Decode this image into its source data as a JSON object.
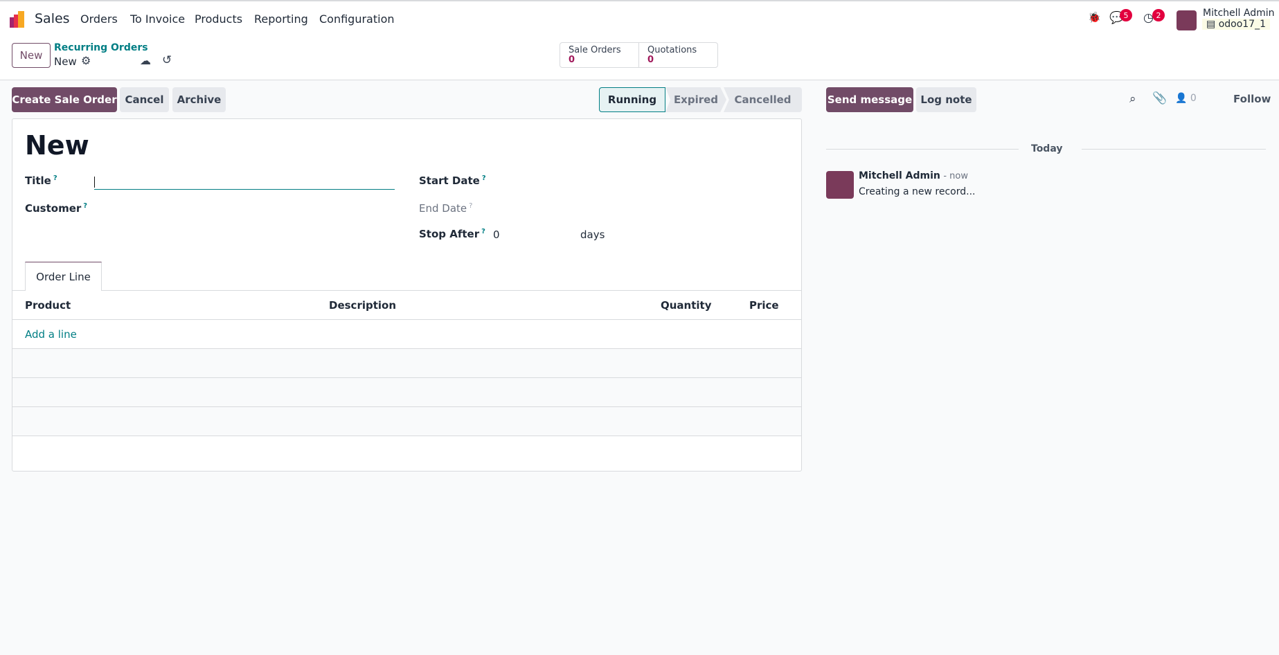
{
  "nav": {
    "app": "Sales",
    "items": [
      "Orders",
      "To Invoice",
      "Products",
      "Reporting",
      "Configuration"
    ],
    "messages_count": "5",
    "activities_count": "2",
    "user": "Mitchell Admin",
    "database": "odoo17_1"
  },
  "control": {
    "new_label": "New",
    "breadcrumb": "Recurring Orders",
    "record": "New",
    "stats": [
      {
        "label": "Sale Orders",
        "value": "0"
      },
      {
        "label": "Quotations",
        "value": "0"
      }
    ]
  },
  "actions": {
    "create": "Create Sale Order",
    "cancel": "Cancel",
    "archive": "Archive"
  },
  "statusbar": {
    "stages": [
      "Running",
      "Expired",
      "Cancelled"
    ],
    "active": "Running"
  },
  "form": {
    "title": "New",
    "fields": {
      "title": "Title",
      "customer": "Customer",
      "start_date": "Start Date",
      "end_date": "End Date",
      "stop_after": "Stop After",
      "stop_after_value": "0",
      "stop_after_unit": "days"
    },
    "help": "?",
    "tab": "Order Line",
    "columns": [
      "Product",
      "Description",
      "Quantity",
      "Price"
    ],
    "add_line": "Add a line"
  },
  "chatter": {
    "send": "Send message",
    "log": "Log note",
    "followers": "0",
    "follow": "Follow",
    "today": "Today",
    "author": "Mitchell Admin",
    "time": "- now",
    "body": "Creating a new record..."
  },
  "colors": {
    "primary": "#714b67",
    "accent": "#017e84",
    "badge": "#e2003e"
  }
}
